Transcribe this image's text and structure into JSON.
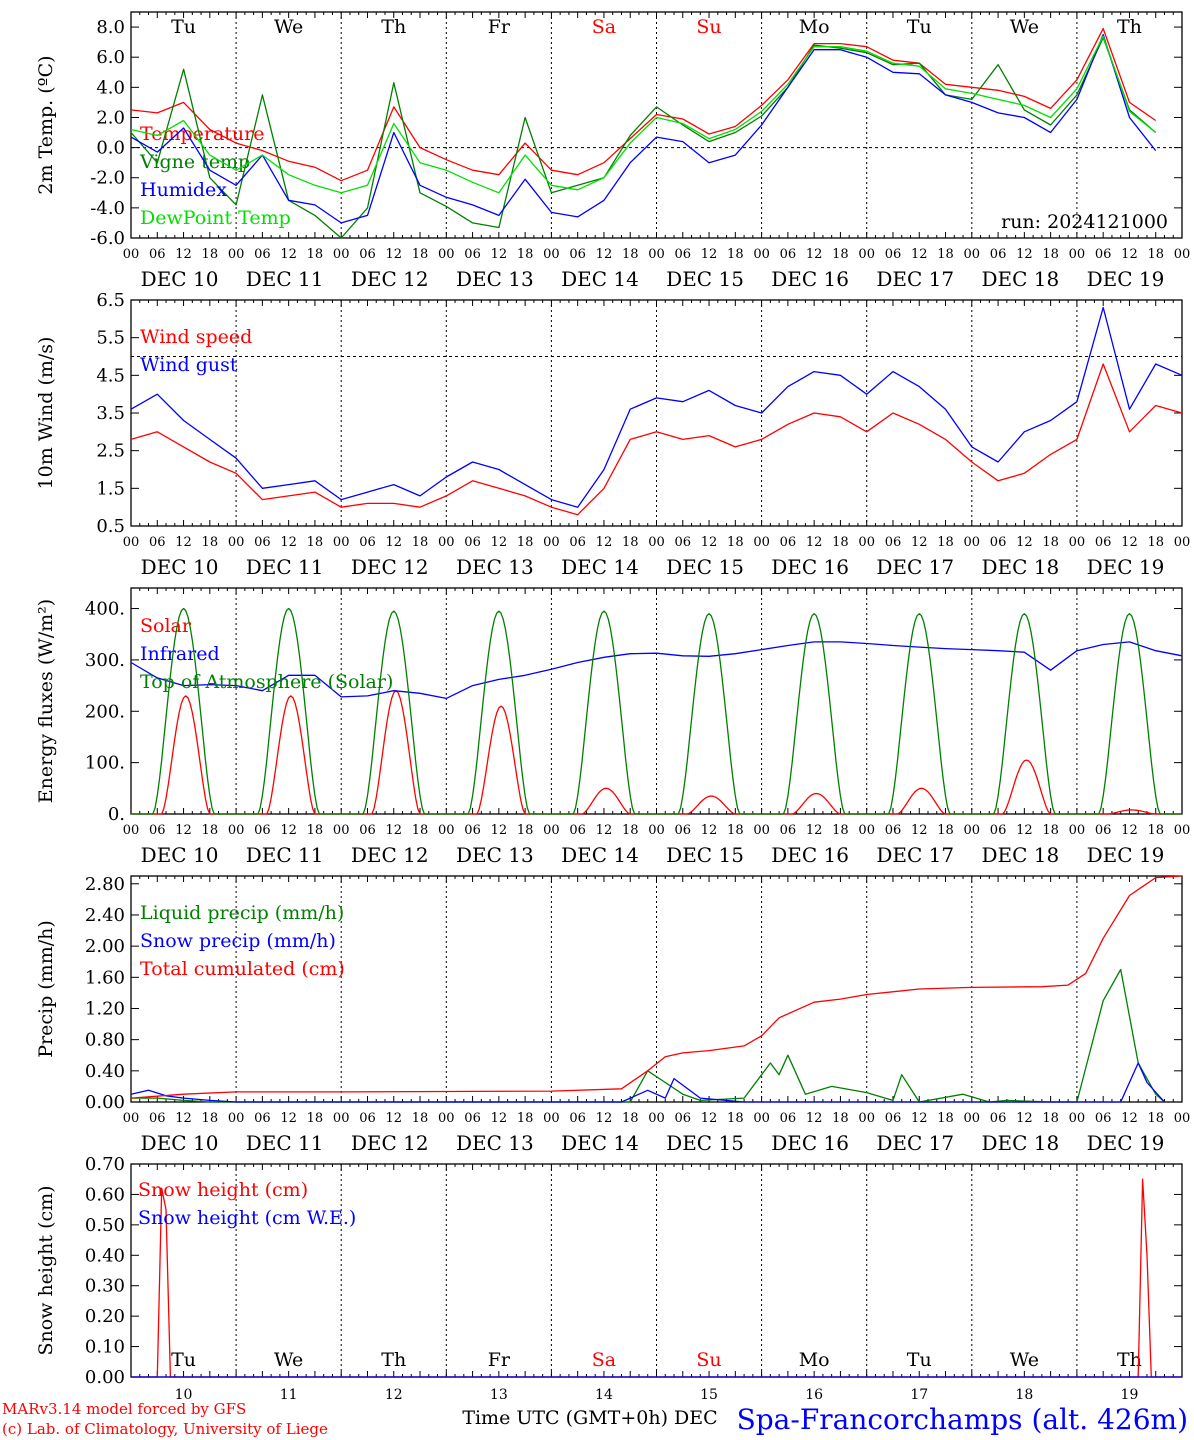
{
  "colors": {
    "red": "#ff0000",
    "green": "#008000",
    "blue": "#0000ff",
    "lightgreen": "#00e000",
    "black": "#000000"
  },
  "x_hours": [
    "00",
    "06",
    "12",
    "18"
  ],
  "date_labels": [
    "DEC 10",
    "DEC 11",
    "DEC 12",
    "DEC 13",
    "DEC 14",
    "DEC 15",
    "DEC 16",
    "DEC 17",
    "DEC 18",
    "DEC 19"
  ],
  "day_names": [
    "Tu",
    "We",
    "Th",
    "Fr",
    "Sa",
    "Su",
    "Mo",
    "Tu",
    "We",
    "Th"
  ],
  "weekend_flags": [
    false,
    false,
    false,
    false,
    true,
    true,
    false,
    false,
    false,
    false
  ],
  "day_numbers": [
    "10",
    "11",
    "12",
    "13",
    "14",
    "15",
    "16",
    "17",
    "18",
    "19"
  ],
  "xlabel_bottom": "Time UTC (GMT+0h) DEC",
  "credit_line1": "MARv3.14 model forced by GFS",
  "credit_line2": "(c) Lab. of Climatology, University of Liege",
  "station_label": "Spa-Francorchamps (alt. 426m)",
  "chart_data": [
    {
      "type": "line",
      "ylabel": "2m Temp. (ºC)",
      "ylim": [
        -6,
        9
      ],
      "yticks": [
        "-6.0",
        "-4.0",
        "-2.0",
        "0.0",
        "2.0",
        "4.0",
        "6.0",
        "8.0"
      ],
      "reference_line": 0,
      "annotation": "run: 2024121000",
      "x_unit": "hours since DEC 10 00 UTC",
      "series": [
        {
          "name": "Temperature",
          "color": "#ff0000",
          "x": [
            0,
            6,
            12,
            18,
            24,
            30,
            36,
            42,
            48,
            54,
            60,
            66,
            72,
            78,
            84,
            90,
            96,
            102,
            108,
            114,
            120,
            126,
            132,
            138,
            144,
            150,
            156,
            162,
            168,
            174,
            180,
            186,
            192,
            198,
            204,
            210,
            216,
            222,
            228,
            234
          ],
          "values": [
            2.5,
            2.3,
            3.0,
            1.2,
            0.3,
            -0.2,
            -0.9,
            -1.3,
            -2.2,
            -1.5,
            2.7,
            0.0,
            -0.8,
            -1.5,
            -1.8,
            0.3,
            -1.5,
            -1.8,
            -1.0,
            0.6,
            2.2,
            1.9,
            0.9,
            1.4,
            2.8,
            4.5,
            6.9,
            6.9,
            6.7,
            5.8,
            5.6,
            4.2,
            4.0,
            3.8,
            3.4,
            2.6,
            4.5,
            7.9,
            3.0,
            1.8
          ]
        },
        {
          "name": "Vigne temp",
          "color": "#008000",
          "x": [
            0,
            6,
            12,
            18,
            24,
            30,
            36,
            42,
            48,
            54,
            60,
            66,
            72,
            78,
            84,
            90,
            96,
            102,
            108,
            114,
            120,
            126,
            132,
            138,
            144,
            150,
            156,
            162,
            168,
            174,
            180,
            186,
            192,
            198,
            204,
            210,
            216,
            222,
            228,
            234
          ],
          "values": [
            1.0,
            -1.0,
            5.2,
            -2.0,
            -3.8,
            3.5,
            -3.5,
            -4.5,
            -6.0,
            -4.0,
            4.3,
            -3.0,
            -3.9,
            -5.0,
            -5.3,
            2.0,
            -3.0,
            -2.5,
            -2.0,
            0.8,
            2.7,
            1.5,
            0.4,
            1.0,
            2.1,
            4.0,
            6.8,
            6.6,
            6.3,
            5.5,
            5.6,
            3.5,
            3.2,
            5.5,
            2.5,
            1.5,
            3.5,
            7.3,
            2.5,
            1.0
          ]
        },
        {
          "name": "Humidex",
          "color": "#0000ff",
          "x": [
            0,
            6,
            12,
            18,
            24,
            30,
            36,
            42,
            48,
            54,
            60,
            66,
            72,
            78,
            84,
            90,
            96,
            102,
            108,
            114,
            120,
            126,
            132,
            138,
            144,
            150,
            156,
            162,
            168,
            174,
            180,
            186,
            192,
            198,
            204,
            210,
            216,
            222,
            228,
            234
          ],
          "values": [
            0.7,
            -0.3,
            1.3,
            -1.5,
            -2.5,
            -0.5,
            -3.5,
            -3.8,
            -5.0,
            -4.5,
            1.0,
            -2.5,
            -3.3,
            -3.8,
            -4.5,
            -2.1,
            -4.3,
            -4.6,
            -3.5,
            -1.0,
            0.7,
            0.4,
            -1.0,
            -0.5,
            1.5,
            4.0,
            6.5,
            6.5,
            6.0,
            5.0,
            4.9,
            3.5,
            3.0,
            2.3,
            2.0,
            1.0,
            3.2,
            7.5,
            2.0,
            -0.2
          ]
        },
        {
          "name": "DewPoint Temp",
          "color": "#00e000",
          "x": [
            0,
            6,
            12,
            18,
            24,
            30,
            36,
            42,
            48,
            54,
            60,
            66,
            72,
            78,
            84,
            90,
            96,
            102,
            108,
            114,
            120,
            126,
            132,
            138,
            144,
            150,
            156,
            162,
            168,
            174,
            180,
            186,
            192,
            198,
            204,
            210,
            216,
            222,
            228,
            234
          ],
          "values": [
            1.2,
            0.8,
            1.8,
            -0.5,
            -1.5,
            -0.5,
            -1.8,
            -2.5,
            -3.0,
            -2.5,
            1.6,
            -1.0,
            -1.5,
            -2.3,
            -3.0,
            -0.5,
            -2.5,
            -2.8,
            -2.0,
            0.3,
            2.0,
            1.6,
            0.6,
            1.2,
            2.4,
            4.2,
            6.7,
            6.7,
            6.4,
            5.6,
            5.4,
            3.9,
            3.6,
            3.2,
            2.8,
            2.0,
            3.9,
            7.4,
            2.4,
            1.0
          ]
        }
      ]
    },
    {
      "type": "line",
      "ylabel": "10m Wind (m/s)",
      "ylim": [
        0.5,
        6.5
      ],
      "yticks": [
        "0.5",
        "1.5",
        "2.5",
        "3.5",
        "4.5",
        "5.5",
        "6.5"
      ],
      "reference_line": 5.0,
      "x_unit": "hours since DEC 10 00 UTC",
      "series": [
        {
          "name": "Wind speed",
          "color": "#ff0000",
          "x": [
            0,
            6,
            12,
            18,
            24,
            30,
            36,
            42,
            48,
            54,
            60,
            66,
            72,
            78,
            84,
            90,
            96,
            102,
            108,
            114,
            120,
            126,
            132,
            138,
            144,
            150,
            156,
            162,
            168,
            174,
            180,
            186,
            192,
            198,
            204,
            210,
            216,
            222,
            228,
            234,
            240
          ],
          "values": [
            2.8,
            3.0,
            2.6,
            2.2,
            1.9,
            1.2,
            1.3,
            1.4,
            1.0,
            1.1,
            1.1,
            1.0,
            1.3,
            1.7,
            1.5,
            1.3,
            1.0,
            0.8,
            1.5,
            2.8,
            3.0,
            2.8,
            2.9,
            2.6,
            2.8,
            3.2,
            3.5,
            3.4,
            3.0,
            3.5,
            3.2,
            2.8,
            2.2,
            1.7,
            1.9,
            2.4,
            2.8,
            4.8,
            3.0,
            3.7,
            3.5
          ]
        },
        {
          "name": "Wind gust",
          "color": "#0000ff",
          "x": [
            0,
            6,
            12,
            18,
            24,
            30,
            36,
            42,
            48,
            54,
            60,
            66,
            72,
            78,
            84,
            90,
            96,
            102,
            108,
            114,
            120,
            126,
            132,
            138,
            144,
            150,
            156,
            162,
            168,
            174,
            180,
            186,
            192,
            198,
            204,
            210,
            216,
            222,
            228,
            234,
            240
          ],
          "values": [
            3.6,
            4.0,
            3.3,
            2.8,
            2.3,
            1.5,
            1.6,
            1.7,
            1.2,
            1.4,
            1.6,
            1.3,
            1.8,
            2.2,
            2.0,
            1.6,
            1.2,
            1.0,
            2.0,
            3.6,
            3.9,
            3.8,
            4.1,
            3.7,
            3.5,
            4.2,
            4.6,
            4.5,
            4.0,
            4.6,
            4.2,
            3.6,
            2.6,
            2.2,
            3.0,
            3.3,
            3.8,
            6.3,
            3.6,
            4.8,
            4.5
          ]
        }
      ]
    },
    {
      "type": "line",
      "ylabel": "Energy fluxes (W/m²)",
      "ylim": [
        0,
        440
      ],
      "yticks": [
        "0.",
        "100.",
        "200.",
        "300.",
        "400."
      ],
      "x_unit": "hours since DEC 10 00 UTC",
      "series": [
        {
          "name": "Solar",
          "color": "#ff0000",
          "daily_peak_hour": 12.5,
          "daily_peaks": [
            230,
            230,
            240,
            210,
            50,
            35,
            40,
            50,
            105,
            8
          ]
        },
        {
          "name": "Infrared",
          "color": "#0000ff",
          "x": [
            0,
            6,
            12,
            18,
            24,
            30,
            36,
            42,
            48,
            54,
            60,
            66,
            72,
            78,
            84,
            90,
            96,
            102,
            108,
            114,
            120,
            126,
            132,
            138,
            144,
            150,
            156,
            162,
            168,
            174,
            180,
            186,
            192,
            198,
            204,
            210,
            216,
            222,
            228,
            234,
            240
          ],
          "values": [
            295,
            265,
            250,
            252,
            250,
            240,
            270,
            270,
            228,
            230,
            240,
            235,
            225,
            250,
            262,
            270,
            282,
            295,
            305,
            312,
            313,
            308,
            307,
            312,
            320,
            328,
            335,
            335,
            332,
            328,
            325,
            322,
            320,
            318,
            315,
            280,
            318,
            330,
            335,
            318,
            308
          ]
        },
        {
          "name": "Top of Atmosphere (Solar)",
          "color": "#008000",
          "daily_peak_hour": 12,
          "daily_peaks": [
            400,
            400,
            395,
            395,
            395,
            390,
            390,
            390,
            390,
            390
          ]
        }
      ]
    },
    {
      "type": "line",
      "ylabel": "Precip (mm/h)",
      "ylim": [
        0,
        2.9
      ],
      "yticks": [
        "0.00",
        "0.40",
        "0.80",
        "1.20",
        "1.60",
        "2.00",
        "2.40",
        "2.80"
      ],
      "x_unit": "hours since DEC 10 00 UTC",
      "series": [
        {
          "name": "Liquid precip (mm/h)",
          "color": "#008000",
          "x": [
            0,
            6,
            12,
            18,
            24,
            114,
            118,
            122,
            126,
            130,
            140,
            146,
            148,
            150,
            154,
            160,
            168,
            174,
            176,
            180,
            190,
            196,
            200,
            210,
            216,
            222,
            226,
            230,
            234,
            236
          ],
          "values": [
            0.05,
            0.05,
            0.02,
            0.0,
            0.0,
            0.0,
            0.4,
            0.25,
            0.1,
            0.02,
            0.05,
            0.5,
            0.35,
            0.6,
            0.1,
            0.2,
            0.12,
            0.02,
            0.35,
            0.0,
            0.1,
            0.0,
            0.02,
            0.0,
            0.0,
            1.3,
            1.7,
            0.5,
            0.1,
            0.0
          ]
        },
        {
          "name": "Snow precip (mm/h)",
          "color": "#0000ff",
          "x": [
            0,
            4,
            8,
            12,
            18,
            24,
            112,
            118,
            122,
            124,
            130,
            140,
            226,
            230,
            232,
            236
          ],
          "values": [
            0.1,
            0.15,
            0.08,
            0.05,
            0.02,
            0.0,
            0.0,
            0.15,
            0.05,
            0.3,
            0.05,
            0.0,
            0.0,
            0.5,
            0.25,
            0.0
          ]
        },
        {
          "name": "Total cumulated (cm)",
          "color": "#ff0000",
          "x": [
            0,
            12,
            24,
            48,
            96,
            112,
            118,
            122,
            126,
            132,
            140,
            144,
            148,
            156,
            162,
            168,
            180,
            192,
            208,
            214,
            218,
            222,
            228,
            234,
            240
          ],
          "values": [
            0.05,
            0.1,
            0.13,
            0.13,
            0.14,
            0.17,
            0.4,
            0.58,
            0.63,
            0.66,
            0.72,
            0.85,
            1.08,
            1.28,
            1.32,
            1.38,
            1.45,
            1.47,
            1.48,
            1.5,
            1.65,
            2.1,
            2.65,
            2.88,
            2.9
          ]
        }
      ]
    },
    {
      "type": "line",
      "ylabel": "Snow height (cm)",
      "ylim": [
        0,
        0.7
      ],
      "yticks": [
        "0.00",
        "0.10",
        "0.20",
        "0.30",
        "0.40",
        "0.50",
        "0.60",
        "0.70"
      ],
      "x_unit": "hours since DEC 10 00 UTC",
      "series": [
        {
          "name": "Snow height (cm)",
          "color": "#ff0000",
          "x": [
            0,
            6,
            7,
            8,
            9,
            10,
            230,
            231,
            232,
            233,
            240
          ],
          "values": [
            0,
            0,
            0.62,
            0.55,
            0,
            0,
            0,
            0.65,
            0.4,
            0,
            0
          ]
        },
        {
          "name": "Snow height (cm W.E.)",
          "color": "#0000ff",
          "x": [
            0,
            240
          ],
          "values": [
            0,
            0
          ]
        }
      ]
    }
  ]
}
